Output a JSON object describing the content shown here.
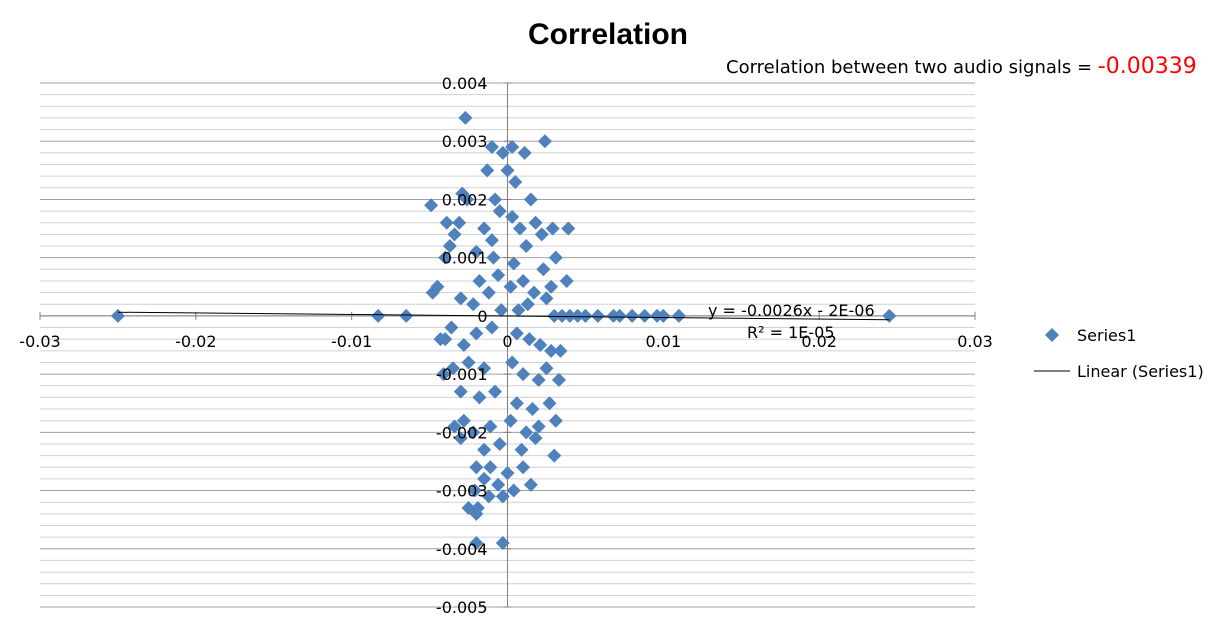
{
  "chart_data": {
    "type": "scatter",
    "title": "Correlation",
    "annotation": {
      "label": "Correlation between two audio signals = ",
      "value": "-0.00339"
    },
    "xlim": [
      -0.03,
      0.03
    ],
    "ylim": [
      -0.005,
      0.004
    ],
    "x_ticks": [
      -0.03,
      -0.02,
      -0.01,
      0,
      0.01,
      0.02,
      0.03
    ],
    "x_tick_labels": [
      "-0.03",
      "-0.02",
      "-0.01",
      "0",
      "0.01",
      "0.02",
      "0.03"
    ],
    "y_ticks": [
      0.004,
      0.003,
      0.002,
      0.001,
      0,
      -0.001,
      -0.002,
      -0.003,
      -0.004,
      -0.005
    ],
    "y_tick_labels": [
      "0.004",
      "0.003",
      "0.002",
      "0.001",
      "0",
      "-0.001",
      "-0.002",
      "-0.003",
      "-0.004",
      "-0.005"
    ],
    "grid": true,
    "legend_position": "right",
    "series": [
      {
        "name": "Series1",
        "marker": "diamond",
        "color": "#4f81bd",
        "points": [
          [
            -0.025,
            0.0
          ],
          [
            -0.0083,
            0.0
          ],
          [
            -0.0065,
            0.0
          ],
          [
            -0.0048,
            0.0004
          ],
          [
            -0.0045,
            0.0005
          ],
          [
            -0.0049,
            0.0019
          ],
          [
            -0.0039,
            0.0016
          ],
          [
            -0.0034,
            0.0014
          ],
          [
            -0.0031,
            0.0016
          ],
          [
            -0.0026,
            0.002
          ],
          [
            -0.0029,
            0.0021
          ],
          [
            -0.0027,
            0.0034
          ],
          [
            -0.001,
            0.0029
          ],
          [
            -0.0003,
            0.0028
          ],
          [
            0.0003,
            0.0029
          ],
          [
            0.0011,
            0.0028
          ],
          [
            0.0024,
            0.003
          ],
          [
            -0.0013,
            0.0025
          ],
          [
            0.0,
            0.0025
          ],
          [
            0.0005,
            0.0023
          ],
          [
            -0.0008,
            0.002
          ],
          [
            0.0015,
            0.002
          ],
          [
            0.0018,
            0.0016
          ],
          [
            0.0022,
            0.0014
          ],
          [
            0.0029,
            0.0015
          ],
          [
            0.0039,
            0.0015
          ],
          [
            0.0031,
            0.001
          ],
          [
            0.0023,
            0.0008
          ],
          [
            0.0038,
            0.0006
          ],
          [
            0.0028,
            0.0005
          ],
          [
            -0.0037,
            0.0012
          ],
          [
            -0.004,
            0.001
          ],
          [
            -0.002,
            0.0011
          ],
          [
            -0.0015,
            0.0015
          ],
          [
            -0.001,
            0.0013
          ],
          [
            -0.0005,
            0.0018
          ],
          [
            0.0003,
            0.0017
          ],
          [
            0.0008,
            0.0015
          ],
          [
            0.0012,
            0.0012
          ],
          [
            -0.0009,
            0.001
          ],
          [
            0.0004,
            0.0009
          ],
          [
            -0.0006,
            0.0007
          ],
          [
            0.001,
            0.0006
          ],
          [
            -0.0018,
            0.0006
          ],
          [
            -0.0012,
            0.0004
          ],
          [
            0.0017,
            0.0004
          ],
          [
            0.0025,
            0.0003
          ],
          [
            -0.003,
            0.0003
          ],
          [
            -0.0022,
            0.0002
          ],
          [
            0.0013,
            0.0002
          ],
          [
            0.0007,
            0.0001
          ],
          [
            -0.0004,
            0.0001
          ],
          [
            0.0002,
            0.0005
          ],
          [
            0.003,
            0.0
          ],
          [
            0.0035,
            0.0
          ],
          [
            0.004,
            0.0
          ],
          [
            0.0045,
            0.0
          ],
          [
            0.005,
            0.0
          ],
          [
            0.0058,
            0.0
          ],
          [
            0.0068,
            0.0
          ],
          [
            0.0072,
            0.0
          ],
          [
            0.008,
            0.0
          ],
          [
            0.0088,
            0.0
          ],
          [
            0.0096,
            0.0
          ],
          [
            0.01,
            0.0
          ],
          [
            0.011,
            0.0
          ],
          [
            0.0245,
            0.0
          ],
          [
            -0.0036,
            -0.0002
          ],
          [
            -0.0043,
            -0.0004
          ],
          [
            -0.004,
            -0.0004
          ],
          [
            -0.0028,
            -0.0005
          ],
          [
            -0.002,
            -0.0003
          ],
          [
            -0.001,
            -0.0002
          ],
          [
            0.0006,
            -0.0003
          ],
          [
            0.0014,
            -0.0004
          ],
          [
            0.0021,
            -0.0005
          ],
          [
            0.0028,
            -0.0006
          ],
          [
            0.0034,
            -0.0006
          ],
          [
            -0.0035,
            -0.0009
          ],
          [
            -0.0041,
            -0.001
          ],
          [
            -0.0025,
            -0.0008
          ],
          [
            -0.0015,
            -0.0009
          ],
          [
            0.0003,
            -0.0008
          ],
          [
            0.001,
            -0.001
          ],
          [
            0.002,
            -0.0011
          ],
          [
            0.0025,
            -0.0009
          ],
          [
            0.0033,
            -0.0011
          ],
          [
            -0.003,
            -0.0013
          ],
          [
            -0.0018,
            -0.0014
          ],
          [
            -0.0008,
            -0.0013
          ],
          [
            0.0006,
            -0.0015
          ],
          [
            0.0016,
            -0.0016
          ],
          [
            0.0027,
            -0.0015
          ],
          [
            -0.0028,
            -0.0018
          ],
          [
            -0.0034,
            -0.0019
          ],
          [
            -0.0022,
            -0.002
          ],
          [
            -0.0011,
            -0.0019
          ],
          [
            0.0002,
            -0.0018
          ],
          [
            0.0012,
            -0.002
          ],
          [
            0.002,
            -0.0019
          ],
          [
            0.0031,
            -0.0018
          ],
          [
            -0.003,
            -0.0021
          ],
          [
            -0.0015,
            -0.0023
          ],
          [
            -0.0005,
            -0.0022
          ],
          [
            0.0009,
            -0.0023
          ],
          [
            0.0018,
            -0.0021
          ],
          [
            0.003,
            -0.0024
          ],
          [
            -0.002,
            -0.0026
          ],
          [
            -0.0011,
            -0.0026
          ],
          [
            0.0,
            -0.0027
          ],
          [
            0.001,
            -0.0026
          ],
          [
            -0.0015,
            -0.0028
          ],
          [
            -0.0006,
            -0.0029
          ],
          [
            0.0004,
            -0.003
          ],
          [
            0.0015,
            -0.0029
          ],
          [
            -0.0021,
            -0.003
          ],
          [
            -0.0012,
            -0.0031
          ],
          [
            -0.0003,
            -0.0031
          ],
          [
            -0.0025,
            -0.0033
          ],
          [
            -0.002,
            -0.0034
          ],
          [
            -0.0019,
            -0.0033
          ],
          [
            -0.002,
            -0.0039
          ],
          [
            -0.0003,
            -0.0039
          ]
        ]
      },
      {
        "name": "Linear (Series1)",
        "type": "line",
        "color": "#000000",
        "equation": "y = -0.0026x - 2E-06",
        "r_squared": "R² = 1E-05",
        "x": [
          -0.025,
          0.0245
        ]
      }
    ]
  }
}
